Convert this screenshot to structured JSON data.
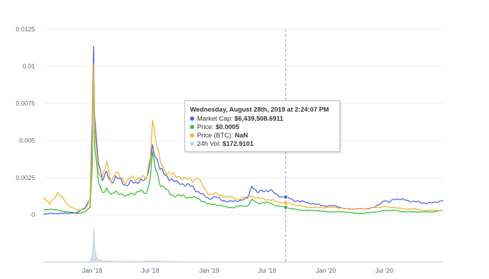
{
  "chart_data": {
    "type": "line",
    "x_start": "2017-08-01",
    "x_end": "2020-12-31",
    "y_ticks": [
      "0.0125",
      "0.01",
      "0.0075",
      "0.005",
      "0.0025",
      "0"
    ],
    "y_tick_values": [
      0.0125,
      0.01,
      0.0075,
      0.005,
      0.0025,
      0
    ],
    "ylim": [
      0,
      0.0125
    ],
    "x_ticks": [
      {
        "label": "Jan '18",
        "date": "2018-01-01"
      },
      {
        "label": "Jul '18",
        "date": "2018-07-01"
      },
      {
        "label": "Jan '19",
        "date": "2019-01-01"
      },
      {
        "label": "Jul '19",
        "date": "2019-07-01"
      },
      {
        "label": "Jan '20",
        "date": "2020-01-01"
      },
      {
        "label": "Jul '20",
        "date": "2020-07-01"
      }
    ],
    "grid": true,
    "crosshair_date": "2019-08-28",
    "series": [
      {
        "name": "Market Cap",
        "color": "#4a62ef",
        "x": [
          "2017-08-01",
          "2017-08-20",
          "2017-09-15",
          "2017-10-15",
          "2017-11-15",
          "2017-12-10",
          "2017-12-25",
          "2018-01-01",
          "2018-01-05",
          "2018-01-08",
          "2018-01-12",
          "2018-01-20",
          "2018-02-01",
          "2018-02-15",
          "2018-03-01",
          "2018-03-15",
          "2018-04-01",
          "2018-04-15",
          "2018-05-01",
          "2018-05-15",
          "2018-06-01",
          "2018-06-20",
          "2018-07-01",
          "2018-07-08",
          "2018-07-15",
          "2018-08-01",
          "2018-08-15",
          "2018-09-01",
          "2018-09-15",
          "2018-10-01",
          "2018-10-20",
          "2018-11-10",
          "2018-11-25",
          "2018-12-15",
          "2019-01-01",
          "2019-01-20",
          "2019-02-10",
          "2019-03-01",
          "2019-03-20",
          "2019-04-10",
          "2019-05-01",
          "2019-05-15",
          "2019-06-01",
          "2019-06-20",
          "2019-07-10",
          "2019-08-01",
          "2019-08-28",
          "2019-09-20",
          "2019-10-15",
          "2019-11-10",
          "2019-12-01",
          "2020-01-01",
          "2020-02-01",
          "2020-03-01",
          "2020-04-01",
          "2020-05-01",
          "2020-06-01",
          "2020-06-15",
          "2020-07-01",
          "2020-07-15",
          "2020-08-01",
          "2020-09-01",
          "2020-10-01",
          "2020-11-01",
          "2020-12-01",
          "2020-12-31"
        ],
        "y": [
          5e-05,
          8e-05,
          0.0001,
          0.0001,
          0.00015,
          0.0005,
          0.0011,
          0.006,
          0.0112,
          0.0068,
          0.0055,
          0.0038,
          0.0023,
          0.0028,
          0.0022,
          0.0025,
          0.0023,
          0.002,
          0.0022,
          0.0021,
          0.0024,
          0.0023,
          0.0036,
          0.0048,
          0.0042,
          0.003,
          0.0028,
          0.0024,
          0.0022,
          0.0022,
          0.002,
          0.0019,
          0.0016,
          0.0013,
          0.0011,
          0.0012,
          0.001,
          0.0009,
          0.0009,
          0.001,
          0.0011,
          0.002,
          0.0015,
          0.0016,
          0.0017,
          0.0013,
          0.0012,
          0.001,
          0.0009,
          0.0008,
          0.0007,
          0.0006,
          0.0006,
          0.0004,
          0.0004,
          0.0004,
          0.0005,
          0.0007,
          0.001,
          0.0008,
          0.0011,
          0.001,
          0.0009,
          0.0008,
          0.0008,
          0.001
        ]
      },
      {
        "name": "Price",
        "color": "#2fc12f",
        "x": [
          "2017-08-01",
          "2017-08-20",
          "2017-09-15",
          "2017-10-15",
          "2017-11-15",
          "2017-12-10",
          "2017-12-25",
          "2018-01-01",
          "2018-01-05",
          "2018-01-08",
          "2018-01-12",
          "2018-01-20",
          "2018-02-01",
          "2018-02-15",
          "2018-03-01",
          "2018-03-15",
          "2018-04-01",
          "2018-04-15",
          "2018-05-01",
          "2018-05-15",
          "2018-06-01",
          "2018-06-20",
          "2018-07-01",
          "2018-07-08",
          "2018-07-15",
          "2018-08-01",
          "2018-08-15",
          "2018-09-01",
          "2018-09-15",
          "2018-10-01",
          "2018-10-20",
          "2018-11-10",
          "2018-11-25",
          "2018-12-15",
          "2019-01-01",
          "2019-01-20",
          "2019-02-10",
          "2019-03-01",
          "2019-03-20",
          "2019-04-10",
          "2019-05-01",
          "2019-05-15",
          "2019-06-01",
          "2019-06-20",
          "2019-07-10",
          "2019-08-01",
          "2019-08-28",
          "2019-09-20",
          "2019-10-15",
          "2019-11-10",
          "2019-12-01",
          "2020-01-01",
          "2020-02-01",
          "2020-03-01",
          "2020-04-01",
          "2020-05-01",
          "2020-06-01",
          "2020-06-15",
          "2020-07-01",
          "2020-07-15",
          "2020-08-01",
          "2020-09-01",
          "2020-10-01",
          "2020-11-01",
          "2020-12-01",
          "2020-12-31"
        ],
        "y": [
          0.0003,
          0.0004,
          0.0003,
          0.0002,
          0.0001,
          0.0002,
          0.0005,
          0.0035,
          0.0102,
          0.0048,
          0.0038,
          0.0022,
          0.0015,
          0.0018,
          0.0013,
          0.0016,
          0.0014,
          0.0012,
          0.0015,
          0.0014,
          0.0016,
          0.0015,
          0.0025,
          0.004,
          0.0033,
          0.0021,
          0.0018,
          0.0014,
          0.0013,
          0.0013,
          0.0012,
          0.0012,
          0.0011,
          0.0009,
          0.0007,
          0.0007,
          0.0006,
          0.0005,
          0.0005,
          0.0006,
          0.0006,
          0.001,
          0.0008,
          0.0008,
          0.0008,
          0.0006,
          0.0005,
          0.0004,
          0.0003,
          0.0003,
          0.0003,
          0.0002,
          0.0002,
          0.0002,
          0.0001,
          0.0001,
          0.0002,
          0.0002,
          0.0003,
          0.0003,
          0.0003,
          0.0002,
          0.0002,
          0.0002,
          0.0002,
          0.0003
        ]
      },
      {
        "name": "Price (BTC)",
        "color": "#f5b327",
        "x": [
          "2017-08-01",
          "2017-08-20",
          "2017-09-15",
          "2017-10-15",
          "2017-11-15",
          "2017-12-10",
          "2017-12-25",
          "2018-01-01",
          "2018-01-05",
          "2018-01-08",
          "2018-01-12",
          "2018-01-20",
          "2018-02-01",
          "2018-02-15",
          "2018-03-01",
          "2018-03-15",
          "2018-04-01",
          "2018-04-15",
          "2018-05-01",
          "2018-05-15",
          "2018-06-01",
          "2018-06-20",
          "2018-07-01",
          "2018-07-08",
          "2018-07-15",
          "2018-08-01",
          "2018-08-15",
          "2018-09-01",
          "2018-09-15",
          "2018-10-01",
          "2018-10-20",
          "2018-11-10",
          "2018-11-25",
          "2018-12-15",
          "2019-01-01",
          "2019-01-20",
          "2019-02-10",
          "2019-03-01",
          "2019-03-20",
          "2019-04-10",
          "2019-05-01",
          "2019-05-15",
          "2019-06-01",
          "2019-06-20",
          "2019-07-10",
          "2019-08-01",
          "2019-08-28",
          "2019-09-20",
          "2019-10-15",
          "2019-11-10",
          "2019-12-01",
          "2020-01-01",
          "2020-02-01",
          "2020-03-01",
          "2020-04-01",
          "2020-05-01",
          "2020-06-01",
          "2020-06-15",
          "2020-07-01",
          "2020-07-15",
          "2020-08-01",
          "2020-09-01",
          "2020-10-01",
          "2020-11-01",
          "2020-12-01",
          "2020-12-31"
        ],
        "y": [
          0.0012,
          0.0007,
          0.0015,
          0.0007,
          0.0003,
          0.0004,
          0.001,
          0.0045,
          0.01,
          0.006,
          0.005,
          0.003,
          0.0024,
          0.0035,
          0.0023,
          0.0028,
          0.0025,
          0.0022,
          0.0025,
          0.0024,
          0.0026,
          0.0024,
          0.004,
          0.0065,
          0.0055,
          0.0035,
          0.003,
          0.0028,
          0.0026,
          0.0026,
          0.0024,
          0.0023,
          0.0026,
          0.0018,
          0.0014,
          0.0014,
          0.0013,
          0.0012,
          0.0011,
          0.0011,
          0.0012,
          0.0013,
          0.0011,
          0.0011,
          0.001,
          0.0009,
          0.0008,
          0.0007,
          0.0006,
          0.0005,
          0.0005,
          0.0005,
          0.0005,
          0.0004,
          0.0004,
          0.0004,
          0.0005,
          0.0005,
          0.0006,
          0.0005,
          0.0005,
          0.0004,
          0.0004,
          0.0003,
          0.0003,
          0.0003
        ]
      },
      {
        "name": "24h Vol",
        "color": "#ccd5e4",
        "x": [
          "2017-08-01",
          "2017-12-25",
          "2018-01-01",
          "2018-01-04",
          "2018-01-06",
          "2018-01-08",
          "2018-01-10",
          "2018-01-14",
          "2018-01-20",
          "2018-02-01",
          "2018-03-01",
          "2018-06-01",
          "2018-07-10",
          "2018-09-01",
          "2019-01-01",
          "2019-07-01",
          "2020-01-01",
          "2020-12-31"
        ],
        "y": [
          1e-05,
          2e-05,
          0.0002,
          0.0006,
          0.00095,
          0.0006,
          0.0003,
          0.00015,
          8e-05,
          4e-05,
          3e-05,
          2e-05,
          4e-05,
          2e-05,
          1e-05,
          1e-05,
          5e-06,
          5e-06
        ]
      }
    ]
  },
  "tooltip": {
    "title": "Wednesday, August 28th, 2019 at 2:24:07 PM",
    "rows": [
      {
        "label": "Market Cap:",
        "value": "$6,439,508.6911",
        "color": "#4a62ef"
      },
      {
        "label": "Price:",
        "value": "$0.0005",
        "color": "#2fc12f"
      },
      {
        "label": "Price (BTC):",
        "value": "NaN",
        "color": "#f5b327"
      },
      {
        "label": "24h Vol:",
        "value": "$172.9101",
        "color": "#ccd5e4"
      }
    ]
  }
}
